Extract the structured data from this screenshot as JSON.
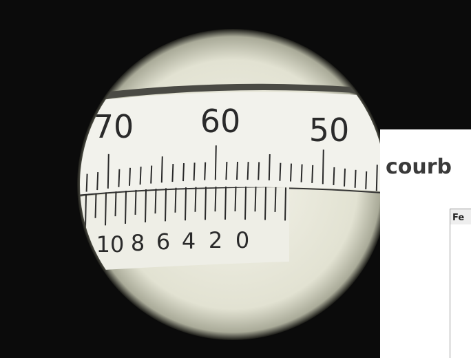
{
  "photo": {
    "main_scale_labels": [
      "70",
      "60",
      "50"
    ],
    "vernier_labels": [
      "10",
      "8",
      "6",
      "4",
      "2",
      "0"
    ]
  },
  "window": {
    "title": "courb",
    "tab": "Fe"
  }
}
